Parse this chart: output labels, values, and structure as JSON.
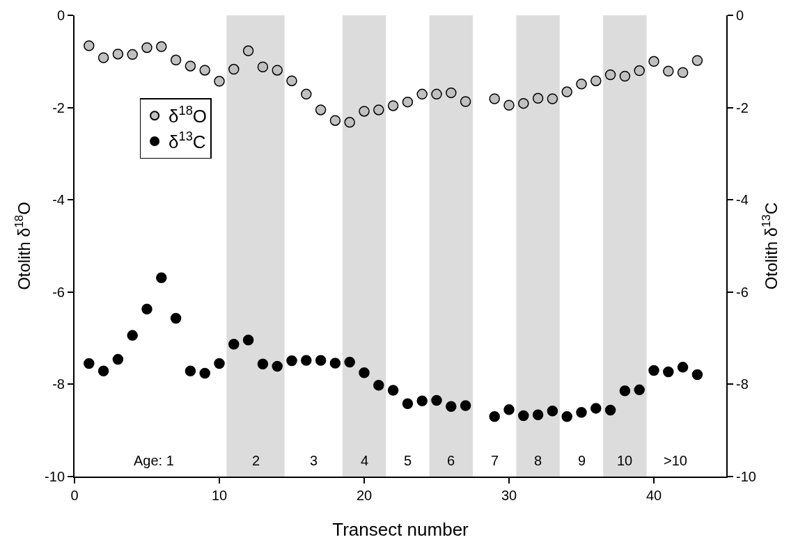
{
  "chart_data": {
    "type": "scatter",
    "xlabel": "Transect number",
    "ylabel": "Otolith δ$^{18}$O",
    "y2label": "Otolith δ$^{13}$C",
    "xlim": [
      0,
      45
    ],
    "xticks": [
      0,
      10,
      20,
      30,
      40
    ],
    "ylim": [
      -10,
      0
    ],
    "yticks": [
      -10,
      -8,
      -6,
      -4,
      -2,
      0
    ],
    "y2lim": [
      -10,
      0
    ],
    "y2ticks": [
      -10,
      -8,
      -6,
      -4,
      -2,
      0
    ],
    "x": [
      1,
      2,
      3,
      4,
      5,
      6,
      7,
      8,
      9,
      10,
      11,
      12,
      13,
      14,
      15,
      16,
      17,
      18,
      19,
      20,
      21,
      22,
      23,
      24,
      25,
      26,
      27,
      29,
      30,
      31,
      32,
      33,
      34,
      35,
      36,
      37,
      38,
      39,
      40,
      41,
      42,
      43
    ],
    "series": [
      {
        "name": "δ$^{18}$O",
        "color": "#c0c0c0",
        "values": [
          -0.66,
          -0.92,
          -0.84,
          -0.85,
          -0.7,
          -0.68,
          -0.97,
          -1.1,
          -1.19,
          -1.43,
          -1.17,
          -0.77,
          -1.12,
          -1.19,
          -1.42,
          -1.71,
          -2.05,
          -2.28,
          -2.32,
          -2.08,
          -2.05,
          -1.96,
          -1.88,
          -1.71,
          -1.71,
          -1.68,
          -1.87,
          -1.81,
          -1.95,
          -1.91,
          -1.8,
          -1.81,
          -1.66,
          -1.49,
          -1.42,
          -1.29,
          -1.32,
          -1.2,
          -1.0,
          -1.21,
          -1.24,
          -0.98
        ]
      },
      {
        "name": "δ$^{13}$C",
        "color": "#000000",
        "axis": "y2",
        "values": [
          -7.55,
          -7.71,
          -7.46,
          -6.94,
          -6.37,
          -5.69,
          -6.57,
          -7.71,
          -7.76,
          -7.55,
          -7.13,
          -7.04,
          -7.56,
          -7.61,
          -7.49,
          -7.48,
          -7.48,
          -7.54,
          -7.52,
          -7.75,
          -8.02,
          -8.13,
          -8.42,
          -8.36,
          -8.35,
          -8.48,
          -8.46,
          -8.7,
          -8.55,
          -8.68,
          -8.66,
          -8.58,
          -8.7,
          -8.61,
          -8.52,
          -8.56,
          -8.14,
          -8.12,
          -7.7,
          -7.73,
          -7.63,
          -7.79
        ]
      }
    ],
    "bands": [
      {
        "axis": "x",
        "from": 10.5,
        "to": 14.5,
        "color": "#dcdcdc",
        "label": "2"
      },
      {
        "axis": "x",
        "from": 18.5,
        "to": 21.5,
        "color": "#dcdcdc",
        "label": "4"
      },
      {
        "axis": "x",
        "from": 24.5,
        "to": 27.5,
        "color": "#dcdcdc",
        "label": "6"
      },
      {
        "axis": "x",
        "from": 30.5,
        "to": 33.5,
        "color": "#dcdcdc",
        "label": "8"
      },
      {
        "axis": "x",
        "from": 36.5,
        "to": 39.5,
        "color": "#dcdcdc",
        "label": "10"
      }
    ],
    "annotations": [
      "Age: 1",
      "3",
      "5",
      "7",
      "9",
      ">10"
    ],
    "grid": false,
    "legend": "top left",
    "marker": "circle"
  }
}
